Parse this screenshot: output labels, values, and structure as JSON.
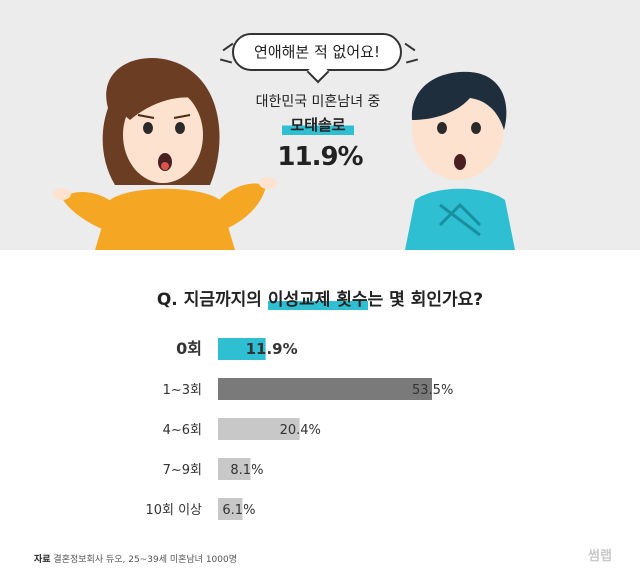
{
  "header": {
    "speech_bubble": "연애해본 적 없어요!",
    "line1": "대한민국 미혼남녀 중",
    "line2": "모태솔로",
    "line3": "11.9%"
  },
  "question": {
    "prefix": "Q. 지금까지의 ",
    "highlight": "이성교제 횟수",
    "suffix": "는 몇 회인가요?"
  },
  "chart_data": {
    "type": "bar",
    "orientation": "horizontal",
    "categories": [
      "0회",
      "1~3회",
      "4~6회",
      "7~9회",
      "10회 이상"
    ],
    "values": [
      11.9,
      53.5,
      20.4,
      8.1,
      6.1
    ],
    "value_labels": [
      "11.9%",
      "53.5%",
      "20.4%",
      "8.1%",
      "6.1%"
    ],
    "colors": [
      "#2fbfd3",
      "#7a7a7a",
      "#c8c8c8",
      "#c8c8c8",
      "#c8c8c8"
    ]
  },
  "footer": {
    "source_label": "자료",
    "source_text": " 결혼정보회사 듀오, 25~39세 미혼남녀 1000명",
    "brand": "썸랩"
  }
}
